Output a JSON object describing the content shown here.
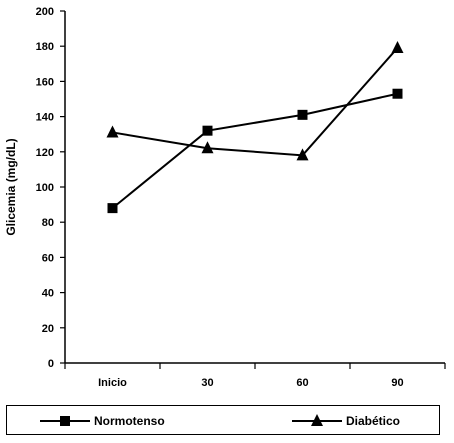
{
  "chart_data": {
    "type": "line",
    "categories": [
      "Inicio",
      "30",
      "60",
      "90"
    ],
    "ylabel": "Glicemia (mg/dL)",
    "xlabel": "",
    "ylim": [
      0,
      200
    ],
    "yticks": [
      0,
      20,
      40,
      60,
      80,
      100,
      120,
      140,
      160,
      180,
      200
    ],
    "grid": false,
    "legend_position": "bottom",
    "series": [
      {
        "name": "Normotenso",
        "marker": "square",
        "color": "#000000",
        "values": [
          88,
          132,
          141,
          153
        ]
      },
      {
        "name": "Diabético",
        "marker": "triangle",
        "color": "#000000",
        "values": [
          131,
          122,
          118,
          179
        ]
      }
    ]
  }
}
